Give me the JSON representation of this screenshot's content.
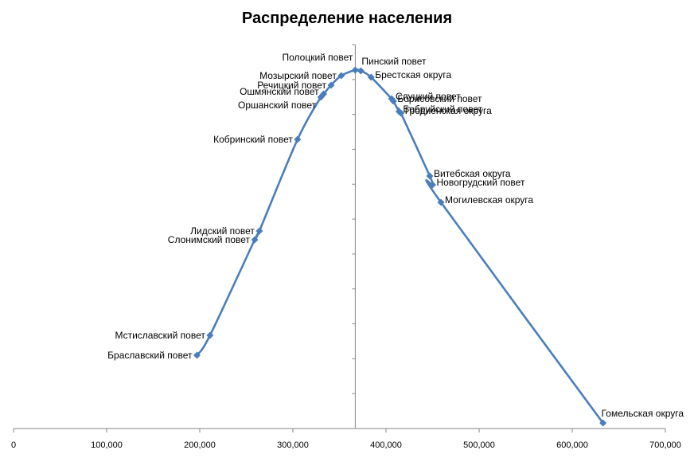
{
  "chart_data": {
    "type": "scatter",
    "title": "Распределение населения",
    "xlabel": "",
    "ylabel": "",
    "xlim": [
      0,
      700000
    ],
    "x_ticks": [
      "0",
      "100,000",
      "200,000",
      "300,000",
      "400,000",
      "500,000",
      "600,000",
      "700,000"
    ],
    "x_tick_values": [
      0,
      100000,
      200000,
      300000,
      400000,
      500000,
      600000,
      700000
    ],
    "y_axis_crosses_x_at": 367000,
    "y_axis_ticks": 11,
    "grid": false,
    "legend": "none",
    "line_color": "#4a7ebb",
    "points": [
      {
        "label": "Браславский повет",
        "x": 197000
      },
      {
        "label": "Мстиславский повет",
        "x": 211000
      },
      {
        "label": "Слонимский повет",
        "x": 259000
      },
      {
        "label": "Лидский повет",
        "x": 264000
      },
      {
        "label": "Кобринский повет",
        "x": 305000
      },
      {
        "label": "Оршанский повет",
        "x": 330000
      },
      {
        "label": "Ошмянский повет",
        "x": 333000
      },
      {
        "label": "Речицкий повет",
        "x": 341000
      },
      {
        "label": "Мозырский повет",
        "x": 352000
      },
      {
        "label": "Полоцкий повет",
        "x": 367000
      },
      {
        "label": "Пинский повет",
        "x": 373000
      },
      {
        "label": "Брестская округа",
        "x": 384000
      },
      {
        "label": "Слуцкий повет",
        "x": 406000
      },
      {
        "label": "Борисовский повет",
        "x": 408000
      },
      {
        "label": "Бобруйский повет",
        "x": 414000
      },
      {
        "label": "Гродненская округа",
        "x": 416000
      },
      {
        "label": "Витебская округа",
        "x": 447000
      },
      {
        "label": "Новогрудский повет",
        "x": 450000
      },
      {
        "label": "Могилевская округа",
        "x": 459000
      },
      {
        "label": "Гомельская округа",
        "x": 633000
      }
    ]
  }
}
